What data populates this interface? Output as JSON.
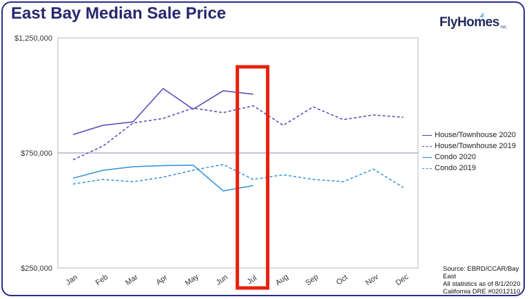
{
  "title": "East Bay Median Sale Price",
  "logo": {
    "text": "FlyHomes",
    "suffix": "INC."
  },
  "source_lines": [
    "Source: EBRD/CCAR/Bay East",
    "All statistics as of 8/1/2020",
    "California DRE #02012110"
  ],
  "colors": {
    "dark_series": "#5a3fb8",
    "light_series": "#2e8fd8",
    "highlight": "#e8200c",
    "title": "#27276e"
  },
  "chart_data": {
    "type": "line",
    "title": "East Bay Median Sale Price",
    "xlabel": "",
    "ylabel": "",
    "categories": [
      "Jan",
      "Feb",
      "Mar",
      "Apr",
      "May",
      "Jun",
      "Jul",
      "Aug",
      "Sep",
      "Oct",
      "Nov",
      "Dec"
    ],
    "ylim": [
      250000,
      1250000
    ],
    "yticks": [
      250000,
      750000,
      1250000
    ],
    "ytick_labels": [
      "$250,000",
      "$750,000",
      "$1,250,000"
    ],
    "series": [
      {
        "name": "House/Townhouse 2020",
        "style": "solid",
        "color": "#5a3fb8",
        "values": [
          830000,
          870000,
          885000,
          1030000,
          940000,
          1020000,
          1005000,
          null,
          null,
          null,
          null,
          null
        ]
      },
      {
        "name": "House/Townhouse 2019",
        "style": "dashed",
        "color": "#5a3fb8",
        "values": [
          720000,
          780000,
          880000,
          900000,
          945000,
          925000,
          955000,
          870000,
          950000,
          895000,
          915000,
          905000
        ]
      },
      {
        "name": "Condo 2020",
        "style": "solid",
        "color": "#2e8fd8",
        "values": [
          640000,
          675000,
          690000,
          695000,
          697000,
          585000,
          608000,
          null,
          null,
          null,
          null,
          null
        ]
      },
      {
        "name": "Condo 2019",
        "style": "dashed",
        "color": "#2e8fd8",
        "values": [
          615000,
          635000,
          625000,
          645000,
          675000,
          700000,
          635000,
          655000,
          635000,
          625000,
          680000,
          600000
        ]
      }
    ],
    "highlight_category": "Jul",
    "legend_position": "right",
    "grid": false
  }
}
